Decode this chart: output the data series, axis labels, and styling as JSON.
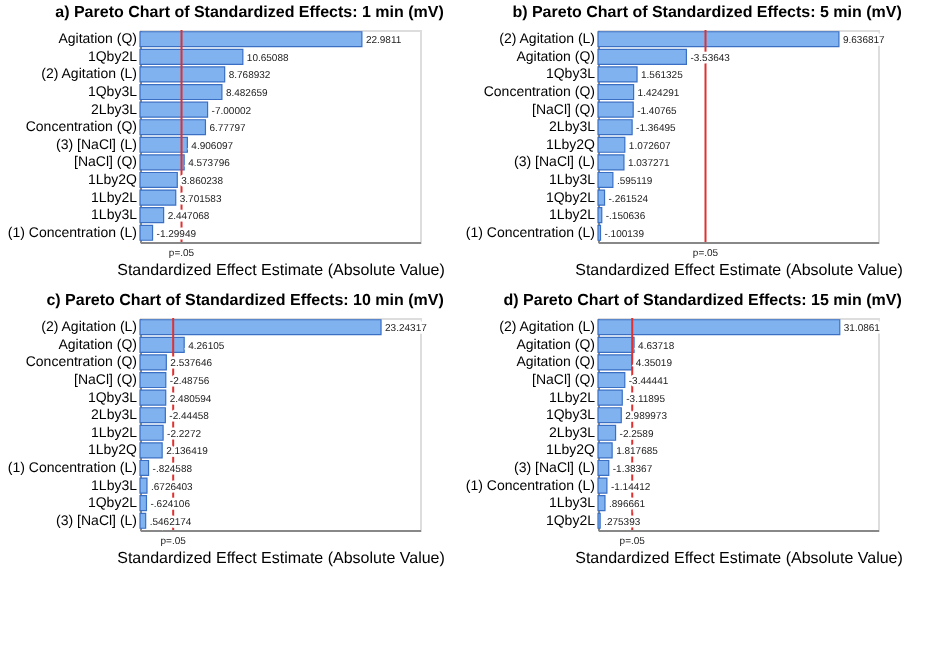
{
  "chart_data": [
    {
      "type": "bar",
      "orientation": "horizontal",
      "title": "a) Pareto Chart of Standardized Effects: 1 min (mV)",
      "xlabel": "Standardized Effect Estimate (Absolute Value)",
      "color": "#7fb2ee",
      "categories": [
        "Agitation (Q)",
        "1Qby2L",
        "(2) Agitation (L)",
        "1Qby3L",
        "2Lby3L",
        "Concentration (Q)",
        "(3) [NaCl] (L)",
        "[NaCl] (Q)",
        "1Lby2Q",
        "1Lby2L",
        "1Lby3L",
        "(1) Concentration (L)"
      ],
      "values": [
        22.9811,
        10.65088,
        8.768932,
        8.482659,
        7.00002,
        6.77797,
        4.906097,
        4.573796,
        3.860238,
        3.701583,
        2.447068,
        1.29949
      ],
      "value_labels": [
        "22.9811",
        "10.65088",
        "8.768932",
        "8.482659",
        null,
        "6.77797",
        "4.906097",
        "4.573796",
        "3.860238",
        "3.701583",
        "2.447068",
        null
      ],
      "annotations": [
        {
          "text": "-7.00002",
          "x": 7.00002,
          "y": "2Lby3L"
        },
        {
          "text": "-1.29949",
          "x": 1.29949,
          "y": "(1) Concentration (L)"
        }
      ],
      "xlim": [
        0,
        29
      ],
      "tick_labels": "y",
      "ref_lines": [
        {
          "axis": "x",
          "value": 4.3,
          "label": "p=.05",
          "color": "#e03030"
        }
      ]
    },
    {
      "type": "bar",
      "orientation": "horizontal",
      "title": "b) Pareto Chart of Standardized Effects: 5 min (mV)",
      "xlabel": "Standardized Effect Estimate (Absolute Value)",
      "color": "#7fb2ee",
      "categories": [
        "(2) Agitation (L)",
        "Agitation (Q)",
        "1Qby3L",
        "Concentration (Q)",
        "[NaCl] (Q)",
        "2Lby3L",
        "1Lby2Q",
        "(3) [NaCl] (L)",
        "1Lby3L",
        "1Qby2L",
        "1Lby2L",
        "(1) Concentration (L)"
      ],
      "values": [
        9.636817,
        3.53643,
        1.561325,
        1.424291,
        1.40765,
        1.36495,
        1.072607,
        1.037271,
        0.595119,
        0.261524,
        0.150636,
        0.100139
      ],
      "value_labels": [
        "9.636817",
        null,
        "1.561325",
        "1.424291",
        null,
        null,
        "1.072607",
        "1.037271",
        ".595119",
        null,
        null,
        null
      ],
      "annotations": [
        {
          "text": "-3.53643",
          "x": 3.53643,
          "y": "Agitation (Q)"
        },
        {
          "text": "-1.40765",
          "x": 1.40765,
          "y": "[NaCl] (Q)"
        },
        {
          "text": "-1.36495",
          "x": 1.36495,
          "y": "2Lby3L"
        },
        {
          "text": "-.261524",
          "x": 0.261524,
          "y": "1Qby2L"
        },
        {
          "text": "-.150636",
          "x": 0.150636,
          "y": "1Lby2L"
        },
        {
          "text": "-.100139",
          "x": 0.100139,
          "y": "(1) Concentration (L)"
        }
      ],
      "xlim": [
        0,
        11.2
      ],
      "tick_labels": "y",
      "ref_lines": [
        {
          "axis": "x",
          "value": 4.3,
          "label": "p=.05",
          "color": "#e03030"
        }
      ]
    },
    {
      "type": "bar",
      "orientation": "horizontal",
      "title": "c) Pareto Chart of Standardized Effects: 10 min (mV)",
      "xlabel": "Standardized Effect Estimate (Absolute Value)",
      "color": "#7fb2ee",
      "categories": [
        "(2) Agitation (L)",
        "Agitation (Q)",
        "Concentration (Q)",
        "[NaCl] (Q)",
        "1Qby3L",
        "2Lby3L",
        "1Lby2L",
        "1Lby2Q",
        "(1) Concentration (L)",
        "1Lby3L",
        "1Qby2L",
        "(3) [NaCl] (L)"
      ],
      "values": [
        23.24317,
        4.26105,
        2.537646,
        2.48756,
        2.480594,
        2.44458,
        2.2272,
        2.136419,
        0.824588,
        0.6726403,
        0.624106,
        0.5462174
      ],
      "value_labels": [
        "23.24317",
        "4.26105",
        "2.537646",
        null,
        "2.480594",
        null,
        null,
        "2.136419",
        null,
        ".6726403",
        null,
        ".5462174"
      ],
      "annotations": [
        {
          "text": "-2.48756",
          "x": 2.48756,
          "y": "[NaCl] (Q)"
        },
        {
          "text": "-2.44458",
          "x": 2.44458,
          "y": "2Lby3L"
        },
        {
          "text": "-2.2272",
          "x": 2.2272,
          "y": "1Lby2L"
        },
        {
          "text": "-.824588",
          "x": 0.824588,
          "y": "(1) Concentration (L)"
        },
        {
          "text": "-.624106",
          "x": 0.624106,
          "y": "1Qby2L"
        }
      ],
      "xlim": [
        0,
        27
      ],
      "tick_labels": "y",
      "ref_lines": [
        {
          "axis": "x",
          "value": 3.2,
          "label": "p=.05",
          "color": "#e03030"
        }
      ]
    },
    {
      "type": "bar",
      "orientation": "horizontal",
      "title": "d) Pareto Chart of Standardized Effects: 15 min (mV)",
      "xlabel": "Standardized Effect Estimate (Absolute Value)",
      "color": "#7fb2ee",
      "categories": [
        "(2) Agitation (L)",
        "Agitation (Q)",
        "Agitation (Q)",
        "[NaCl] (Q)",
        "1Lby2L",
        "1Qby3L",
        "2Lby3L",
        "1Lby2Q",
        "(3) [NaCl] (L)",
        "(1) Concentration (L)",
        "1Lby3L",
        "1Qby2L"
      ],
      "values": [
        31.0861,
        4.63718,
        4.35019,
        3.44441,
        3.11895,
        2.989973,
        2.2589,
        1.817685,
        1.38367,
        1.14412,
        0.896661,
        0.275393
      ],
      "value_labels": [
        "31.0861",
        "4.63718",
        "4.35019",
        null,
        null,
        "2.989973",
        null,
        "1.817685",
        null,
        null,
        ".896661",
        ".275393"
      ],
      "annotations": [
        {
          "text": "-3.44441",
          "x": 3.44441,
          "y": "[NaCl] (Q)"
        },
        {
          "text": "-3.11895",
          "x": 3.11895,
          "y": "1Lby2L"
        },
        {
          "text": "-2.2589",
          "x": 2.2589,
          "y": "2Lby3L"
        },
        {
          "text": "-1.38367",
          "x": 1.38367,
          "y": "(3) [NaCl] (L)"
        },
        {
          "text": "-1.14412",
          "x": 1.14412,
          "y": "(1) Concentration (L)"
        }
      ],
      "xlim": [
        0,
        36
      ],
      "tick_labels": "y",
      "ref_lines": [
        {
          "axis": "x",
          "value": 4.4,
          "label": "p=.05",
          "color": "#e03030"
        }
      ]
    }
  ]
}
